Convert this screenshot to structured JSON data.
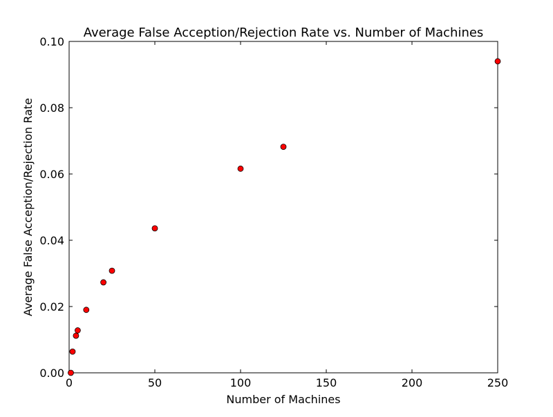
{
  "chart_data": {
    "type": "scatter",
    "title": "Average False Acception/Rejection Rate vs. Number of Machines",
    "xlabel": "Number of Machines",
    "ylabel": "Average False Acception/Rejection Rate",
    "xlim": [
      0,
      250
    ],
    "ylim": [
      0,
      0.1
    ],
    "xticks": [
      0,
      50,
      100,
      150,
      200,
      250
    ],
    "yticks": [
      0.0,
      0.02,
      0.04,
      0.06,
      0.08,
      0.1
    ],
    "xtick_labels": [
      "0",
      "50",
      "100",
      "150",
      "200",
      "250"
    ],
    "ytick_labels": [
      "0.00",
      "0.02",
      "0.04",
      "0.06",
      "0.08",
      "0.10"
    ],
    "grid": false,
    "legend": "none",
    "marker_color": "#ff0000",
    "marker_edge_color": "#000000",
    "series": [
      {
        "x": [
          1,
          2,
          4,
          5,
          10,
          20,
          25,
          50,
          100,
          125,
          250
        ],
        "y": [
          0.0,
          0.0064,
          0.0112,
          0.0128,
          0.019,
          0.0273,
          0.0308,
          0.0436,
          0.0616,
          0.0682,
          0.094
        ]
      }
    ]
  }
}
